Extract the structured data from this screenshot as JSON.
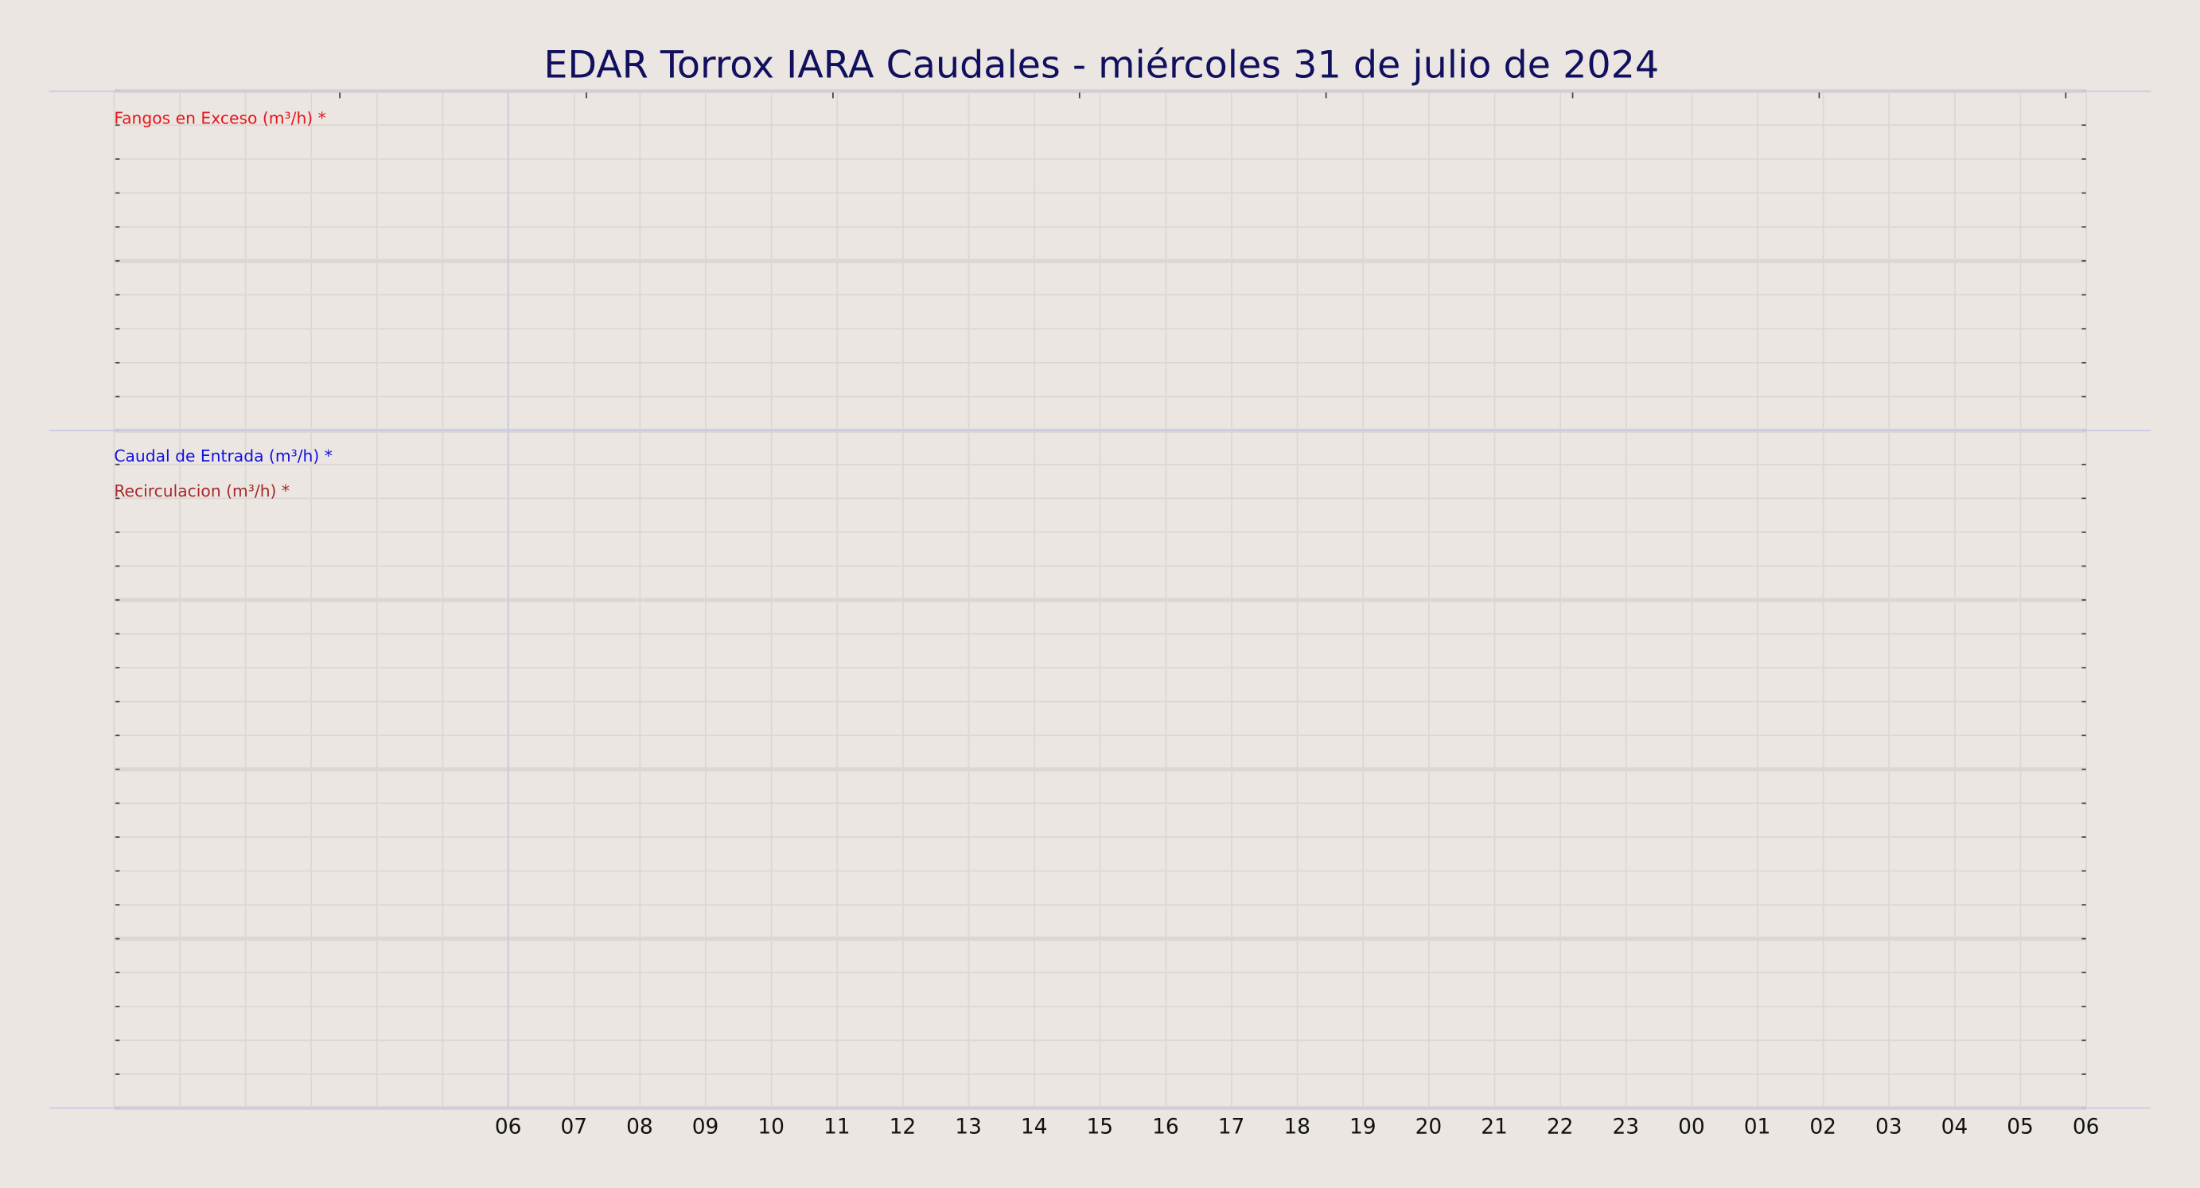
{
  "chart_data": [
    {
      "type": "line",
      "title": "EDAR Torrox IARA Caudales   -   miércoles 31 de julio de 2024",
      "series": [
        {
          "name": "Fangos en Exceso (m³/h) *",
          "color": "#e8141c"
        }
      ]
    },
    {
      "type": "line",
      "categories": [
        "06",
        "07",
        "08",
        "09",
        "10",
        "11",
        "12",
        "13",
        "14",
        "15",
        "16",
        "17",
        "18",
        "19",
        "20",
        "21",
        "22",
        "23",
        "00",
        "01",
        "02",
        "03",
        "04",
        "05",
        "06"
      ],
      "series": [
        {
          "name": "Caudal de Entrada (m³/h) *",
          "color": "#1010e0"
        },
        {
          "name": "Recirculacion (m³/h) *",
          "color": "#a52a2a"
        }
      ]
    }
  ]
}
